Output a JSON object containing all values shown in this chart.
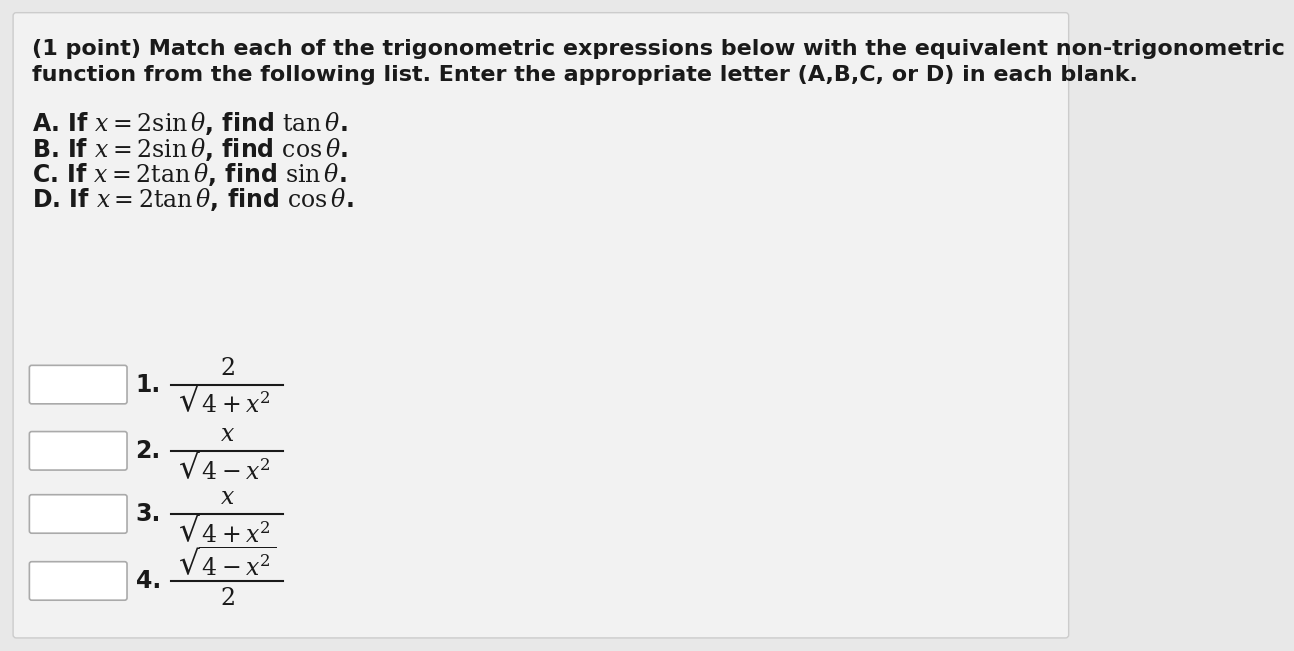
{
  "background_color": "#e8e8e8",
  "content_bg": "#f2f2f2",
  "title_line1": "(1 point) Match each of the trigonometric expressions below with the equivalent non-trigonometric",
  "title_line2": "function from the following list. Enter the appropriate letter (A,B,C, or D) in each blank.",
  "options": [
    "A. If $x = 2\\sin\\theta$, find $\\tan\\theta$.",
    "B. If $x = 2\\sin\\theta$, find $\\cos\\theta$.",
    "C. If $x = 2\\tan\\theta$, find $\\sin\\theta$.",
    "D. If $x = 2\\tan\\theta$, find $\\cos\\theta$."
  ],
  "text_color": "#1a1a1a",
  "font_size_title": 16,
  "font_size_options": 17,
  "font_size_number": 17,
  "font_size_expr": 17,
  "box_color": "white",
  "box_edge_color": "#aaaaaa"
}
